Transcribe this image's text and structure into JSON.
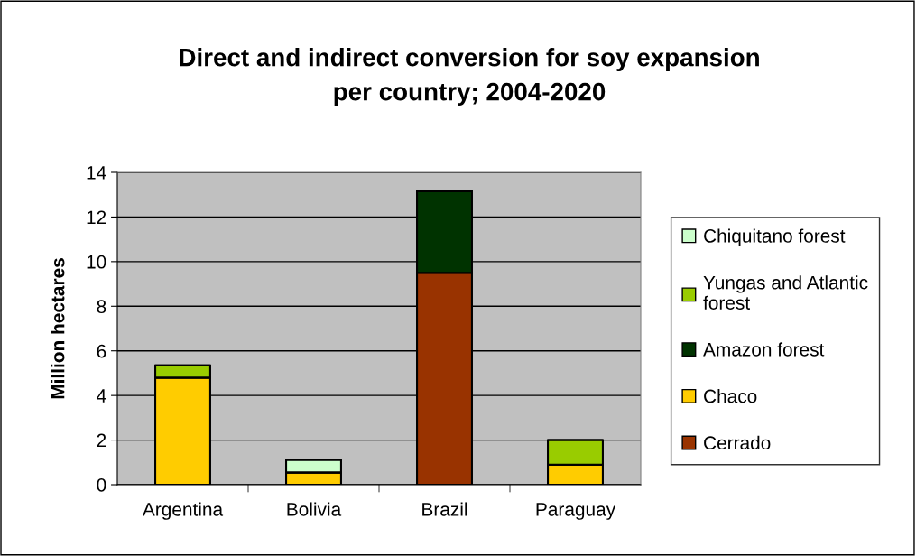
{
  "chart_data": {
    "type": "bar",
    "title": "Direct and indirect conversion for soy expansion\nper country; 2004-2020",
    "ylabel": "Million hectares",
    "categories": [
      "Argentina",
      "Bolivia",
      "Brazil",
      "Paraguay"
    ],
    "stacked": true,
    "series": [
      {
        "name": "Cerrado",
        "color": "#993300",
        "values": [
          null,
          null,
          9.5,
          null
        ]
      },
      {
        "name": "Chaco",
        "color": "#ffcc00",
        "values": [
          4.8,
          0.55,
          null,
          0.9
        ]
      },
      {
        "name": "Amazon forest",
        "color": "#003300",
        "values": [
          null,
          null,
          3.65,
          null
        ]
      },
      {
        "name": "Yungas and Atlantic\nforest",
        "color": "#99cc00",
        "values": [
          0.55,
          null,
          null,
          1.1
        ]
      },
      {
        "name": "Chiquitano forest",
        "color": "#ccffcc",
        "values": [
          null,
          0.55,
          null,
          null
        ]
      }
    ],
    "ylim": [
      0,
      14
    ],
    "yticks": [
      0,
      2,
      4,
      6,
      8,
      10,
      12,
      14
    ],
    "grid": "y",
    "legend": "right"
  }
}
